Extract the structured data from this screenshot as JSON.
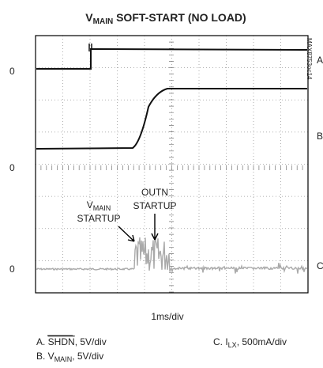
{
  "title": {
    "main": "V",
    "sub": "MAIN",
    "rest": " SOFT-START (NO LOAD)"
  },
  "left_labels": [
    "0",
    "0",
    "0"
  ],
  "right_labels": [
    "A",
    "B",
    "C"
  ],
  "side_code": "MAX8753oc14",
  "annotations": {
    "vmain": {
      "main": "V",
      "sub": "MAIN",
      "line2": "STARTUP"
    },
    "outn": {
      "line1": "OUTN",
      "line2": "STARTUP"
    }
  },
  "time_scale": "1ms/div",
  "legend": {
    "a": {
      "prefix": "A. ",
      "signal": "SHDN",
      "scale": ", 5V/div"
    },
    "b": {
      "prefix": "B. V",
      "sub": "MAIN",
      "scale": ", 5V/div"
    },
    "c": {
      "prefix": "C. I",
      "sub": "LX",
      "scale": ", 500mA/div"
    }
  }
}
